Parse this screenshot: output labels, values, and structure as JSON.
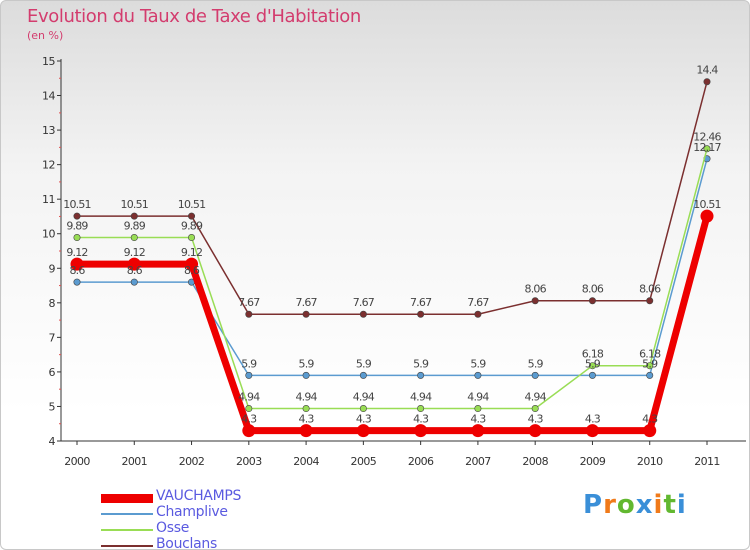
{
  "header": {
    "title": "Evolution du Taux de Taxe d'Habitation",
    "subtitle": "(en %)"
  },
  "chart_data": {
    "type": "line",
    "title": "Evolution du Taux de Taxe d'Habitation",
    "ylabel": "(en %)",
    "xlabel": "",
    "ylim": [
      4,
      15
    ],
    "y_ticks": [
      "4",
      "5",
      "6",
      "7",
      "8",
      "9",
      "10",
      "11",
      "12",
      "13",
      "14",
      "15"
    ],
    "grid": false,
    "legend_position": "bottom-left",
    "categories": [
      "2000",
      "2001",
      "2002",
      "2003",
      "2004",
      "2005",
      "2006",
      "2007",
      "2008",
      "2009",
      "2010",
      "2011"
    ],
    "series": [
      {
        "name": "VAUCHAMPS",
        "color": "#ee0000",
        "values": [
          9.12,
          9.12,
          9.12,
          4.3,
          4.3,
          4.3,
          4.3,
          4.3,
          4.3,
          4.3,
          4.3,
          10.51
        ],
        "labels": [
          "9.12",
          "9.12",
          "9.12",
          "4.3",
          "4.3",
          "4.3",
          "4.3",
          "4.3",
          "4.3",
          "4.3",
          "4.3",
          "10.51"
        ]
      },
      {
        "name": "Champlive",
        "color": "#5b9bd0",
        "values": [
          8.6,
          8.6,
          8.6,
          5.9,
          5.9,
          5.9,
          5.9,
          5.9,
          5.9,
          5.9,
          5.9,
          12.17
        ],
        "labels": [
          "8.6",
          "8.6",
          "8.6",
          "5.9",
          "5.9",
          "5.9",
          "5.9",
          "5.9",
          "5.9",
          "5.9",
          "5.9",
          "12.17"
        ]
      },
      {
        "name": "Osse",
        "color": "#99dd55",
        "values": [
          9.89,
          9.89,
          9.89,
          4.94,
          4.94,
          4.94,
          4.94,
          4.94,
          4.94,
          6.18,
          6.18,
          12.46
        ],
        "labels": [
          "9.89",
          "9.89",
          "9.89",
          "4.94",
          "4.94",
          "4.94",
          "4.94",
          "4.94",
          "4.94",
          "6.18",
          "6.18",
          "12.46"
        ]
      },
      {
        "name": "Bouclans",
        "color": "#7b2f2f",
        "values": [
          10.51,
          10.51,
          10.51,
          7.67,
          7.67,
          7.67,
          7.67,
          7.67,
          8.06,
          8.06,
          8.06,
          14.4
        ],
        "labels": [
          "10.51",
          "10.51",
          "10.51",
          "7.67",
          "7.67",
          "7.67",
          "7.67",
          "7.67",
          "8.06",
          "8.06",
          "8.06",
          "14.4"
        ]
      }
    ]
  },
  "logo": {
    "letters": [
      "P",
      "r",
      "o",
      "x",
      "i",
      "t",
      "i"
    ],
    "colors": [
      "#3a8fd8",
      "#f07a1a",
      "#62b830",
      "#3a8fd8",
      "#f07a1a",
      "#62b830",
      "#3a8fd8"
    ]
  }
}
